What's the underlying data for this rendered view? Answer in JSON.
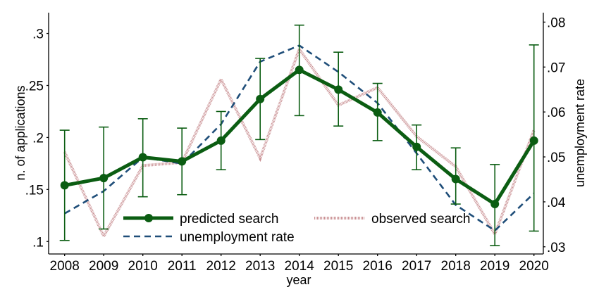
{
  "chart_data": {
    "type": "line",
    "title": "",
    "xlabel": "year",
    "ylabel_left": "n. of applications",
    "ylabel_right": "unemployment rate",
    "x": [
      2008,
      2009,
      2010,
      2011,
      2012,
      2013,
      2014,
      2015,
      2016,
      2017,
      2018,
      2019,
      2020
    ],
    "x_tick_labels": [
      "2008",
      "2009",
      "2010",
      "2011",
      "2012",
      "2013",
      "2014",
      "2015",
      "2016",
      "2017",
      "2018",
      "2019",
      "2020"
    ],
    "ylim_left": [
      0.088,
      0.32
    ],
    "ylim_right": [
      0.0284,
      0.0821
    ],
    "left_ticks": [
      0.1,
      0.15,
      0.2,
      0.25,
      0.3
    ],
    "left_tick_labels": [
      ".1",
      ".15",
      ".2",
      ".25",
      ".3"
    ],
    "right_ticks": [
      0.03,
      0.04,
      0.05,
      0.06,
      0.07,
      0.08
    ],
    "right_tick_labels": [
      ".03",
      ".04",
      ".05",
      ".06",
      ".07",
      ".08"
    ],
    "grid": false,
    "legend_placement": "bottom-center",
    "series": [
      {
        "name": "predicted search",
        "axis": "left",
        "style": "solid-markers",
        "color": "#0b5d12",
        "values": [
          0.154,
          0.161,
          0.181,
          0.177,
          0.197,
          0.237,
          0.265,
          0.246,
          0.224,
          0.191,
          0.16,
          0.136,
          0.197
        ],
        "ci_lower": [
          0.101,
          0.112,
          0.143,
          0.145,
          0.169,
          0.198,
          0.221,
          0.211,
          0.197,
          0.169,
          0.136,
          0.096,
          0.11
        ],
        "ci_upper": [
          0.207,
          0.21,
          0.218,
          0.209,
          0.225,
          0.276,
          0.308,
          0.282,
          0.252,
          0.212,
          0.19,
          0.174,
          0.289
        ]
      },
      {
        "name": "observed search",
        "axis": "left",
        "style": "dotted-thick",
        "color": "#c98f92",
        "values": [
          0.186,
          0.105,
          0.173,
          0.176,
          0.256,
          0.18,
          0.285,
          0.231,
          0.248,
          0.201,
          0.172,
          0.107,
          0.207
        ]
      },
      {
        "name": "unemployment rate",
        "axis": "right",
        "style": "dashed",
        "color": "#1f4e79",
        "values": [
          0.0374,
          0.0424,
          0.0499,
          0.0485,
          0.0573,
          0.0712,
          0.0748,
          0.0689,
          0.062,
          0.0508,
          0.0393,
          0.0336,
          0.0419
        ]
      }
    ],
    "legend": [
      {
        "label": "predicted search"
      },
      {
        "label": "observed search"
      },
      {
        "label": "unemployment rate"
      }
    ]
  }
}
